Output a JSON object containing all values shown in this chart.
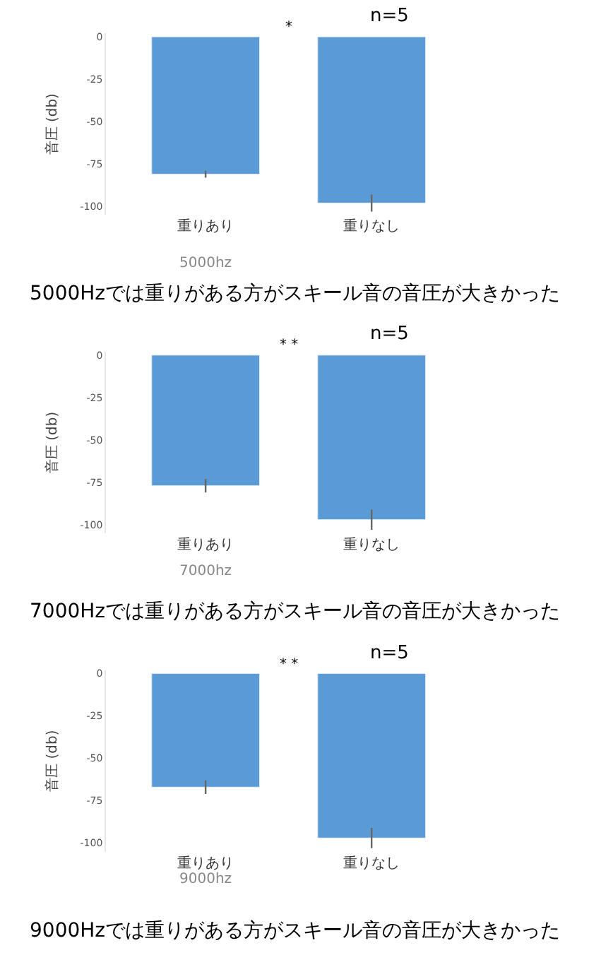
{
  "chart_data": [
    {
      "type": "bar",
      "ylabel": "音圧 (db)",
      "xlabel": "5000hz",
      "categories": [
        "重りあり",
        "重りなし"
      ],
      "values": [
        -81,
        -98
      ],
      "errors": [
        2,
        5
      ],
      "color": "#5b9bd5",
      "ylim": [
        -105,
        2
      ],
      "yticks": [
        0,
        -25,
        -50,
        -75,
        -100
      ],
      "annotations": [
        "*",
        "n=5",
        "5000Hzでは重りがある方がスキール音の音圧が大きかった"
      ]
    },
    {
      "type": "bar",
      "ylabel": "音圧 (db)",
      "xlabel": "7000hz",
      "categories": [
        "重りあり",
        "重りなし"
      ],
      "values": [
        -77,
        -97
      ],
      "errors": [
        4,
        6
      ],
      "color": "#5b9bd5",
      "ylim": [
        -105,
        2
      ],
      "yticks": [
        0,
        -25,
        -50,
        -75,
        -100
      ],
      "annotations": [
        "* *",
        "n=5",
        "7000Hzでは重りがある方がスキール音の音圧が大きかった"
      ]
    },
    {
      "type": "bar",
      "ylabel": "音圧 (db)",
      "xlabel": "9000hz",
      "categories": [
        "重りあり",
        "重りなし"
      ],
      "values": [
        -67,
        -97
      ],
      "errors": [
        4,
        6
      ],
      "color": "#5b9bd5",
      "ylim": [
        -105,
        2
      ],
      "yticks": [
        0,
        -25,
        -50,
        -75,
        -100
      ],
      "annotations": [
        "* *",
        "n=5",
        "9000Hzでは重りがある方がスキール音の音圧が大きかった"
      ]
    }
  ]
}
